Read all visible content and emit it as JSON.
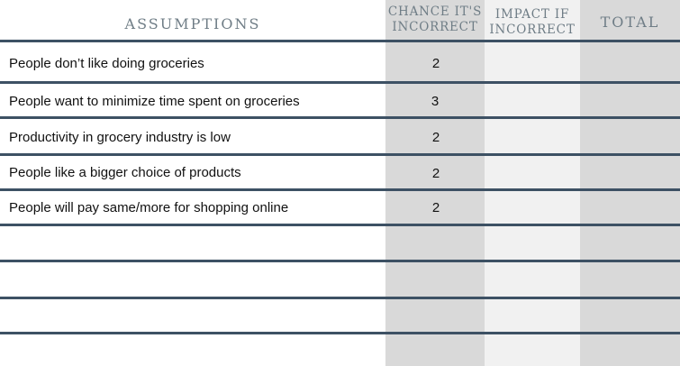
{
  "headers": {
    "assumptions": "ASSUMPTIONS",
    "chance": "CHANCE IT'S\nINCORRECT",
    "impact": "IMPACT IF\nINCORRECT",
    "total": "TOTAL"
  },
  "rows": [
    {
      "assumption": "People don’t like doing groceries",
      "chance": "2",
      "impact": "",
      "total": ""
    },
    {
      "assumption": "People want to minimize time spent on groceries",
      "chance": "3",
      "impact": "",
      "total": ""
    },
    {
      "assumption": "Productivity in grocery industry is low",
      "chance": "2",
      "impact": "",
      "total": ""
    },
    {
      "assumption": "People like a bigger choice of products",
      "chance": "2",
      "impact": "",
      "total": ""
    },
    {
      "assumption": "People will pay same/more for shopping online",
      "chance": "2",
      "impact": "",
      "total": ""
    },
    {
      "assumption": "",
      "chance": "",
      "impact": "",
      "total": ""
    },
    {
      "assumption": "",
      "chance": "",
      "impact": "",
      "total": ""
    },
    {
      "assumption": "",
      "chance": "",
      "impact": "",
      "total": ""
    }
  ],
  "colors": {
    "separator": "#3d5164",
    "shade_dark": "#d9d9d9",
    "shade_light": "#f1f1f1",
    "header_text": "#6f7d86"
  }
}
